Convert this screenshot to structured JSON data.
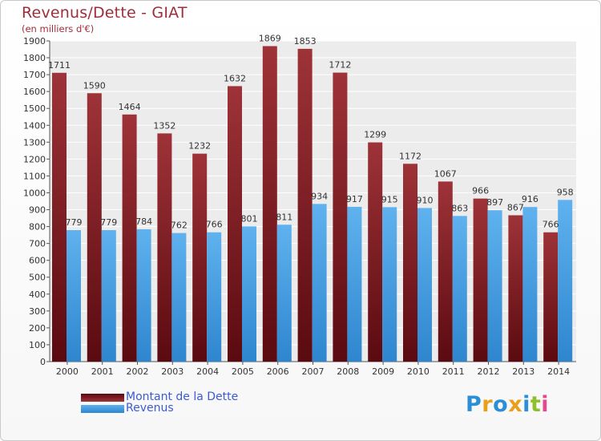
{
  "title": "Revenus/Dette - GIAT",
  "subtitle": "(en milliers d'€)",
  "logo": "Proxiti",
  "colors": {
    "debt_dark": "#5a0a10",
    "debt_light": "#9e3338",
    "revenue_dark": "#2e86cf",
    "revenue_light": "#5fb2ee",
    "title": "#9e2d3a",
    "legend_text": "#3b5bd6"
  },
  "chart_data": {
    "type": "bar",
    "categories": [
      "2000",
      "2001",
      "2002",
      "2003",
      "2004",
      "2005",
      "2006",
      "2007",
      "2008",
      "2009",
      "2010",
      "2011",
      "2012",
      "2013",
      "2014"
    ],
    "series": [
      {
        "name": "Montant de la Dette",
        "values": [
          1711,
          1590,
          1464,
          1352,
          1232,
          1632,
          1869,
          1853,
          1712,
          1299,
          1172,
          1067,
          966,
          867,
          766
        ]
      },
      {
        "name": "Revenus",
        "values": [
          779,
          779,
          784,
          762,
          766,
          801,
          811,
          934,
          917,
          915,
          910,
          863,
          897,
          916,
          958
        ]
      }
    ],
    "ylim": [
      0,
      1900
    ],
    "ytick_step": 100,
    "grid": true,
    "legend_position": "bottom-left"
  }
}
